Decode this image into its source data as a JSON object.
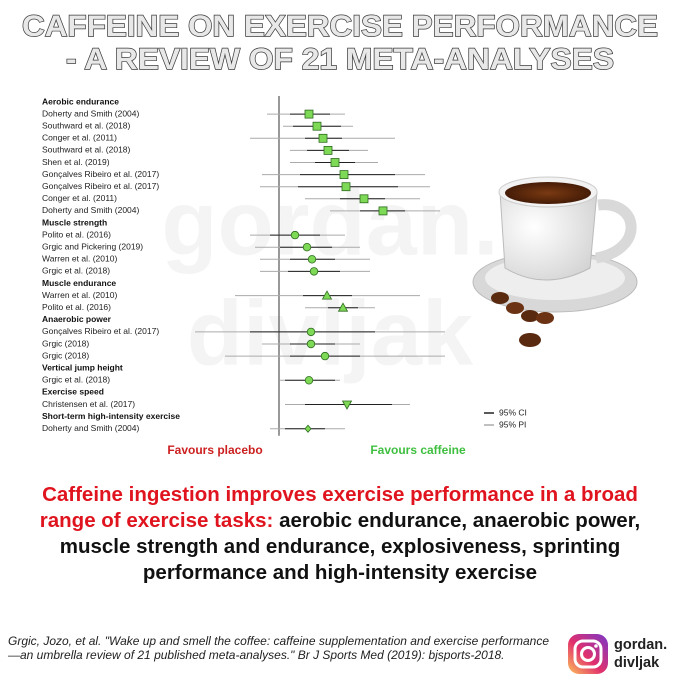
{
  "header": {
    "title_lines": [
      "CAFFEINE ON EXERCISE PERFORMANCE",
      "- A REVIEW OF 21 META-ANALYSES"
    ]
  },
  "watermark": [
    "gordan.",
    "divljak"
  ],
  "chart_data": {
    "type": "forest",
    "xlim": [
      -0.9,
      1.9
    ],
    "reference_line": 0,
    "marker_color": "#7ed957",
    "groups": [
      {
        "name": "Aerobic endurance",
        "marker": "square",
        "rows": [
          {
            "name": "Doherty and Smith (2004)",
            "estimate": 0.3,
            "ci": [
              0.11,
              0.51
            ],
            "pi": [
              -0.12,
              0.66
            ]
          },
          {
            "name": "Southward et al. (2018)",
            "estimate": 0.38,
            "ci": [
              0.14,
              0.62
            ],
            "pi": [
              0.04,
              0.74
            ]
          },
          {
            "name": "Conger et al. (2011)",
            "estimate": 0.44,
            "ci": [
              0.26,
              0.63
            ],
            "pi": [
              -0.29,
              1.16
            ]
          },
          {
            "name": "Southward et al. (2018)",
            "estimate": 0.49,
            "ci": [
              0.28,
              0.7
            ],
            "pi": [
              0.11,
              0.89
            ]
          },
          {
            "name": "Shen et al. (2019)",
            "estimate": 0.56,
            "ci": [
              0.36,
              0.76
            ],
            "pi": [
              0.11,
              0.99
            ]
          },
          {
            "name": "Gonçalves Ribeiro et al. (2017)",
            "estimate": 0.65,
            "ci": [
              0.21,
              1.16
            ],
            "pi": [
              -0.17,
              1.46
            ]
          },
          {
            "name": "Gonçalves Ribeiro et al. (2017)",
            "estimate": 0.67,
            "ci": [
              0.19,
              1.19
            ],
            "pi": [
              -0.19,
              1.51
            ]
          },
          {
            "name": "Conger et al. (2011)",
            "estimate": 0.85,
            "ci": [
              0.61,
              1.06
            ],
            "pi": [
              0.26,
              1.41
            ]
          },
          {
            "name": "Doherty and Smith (2004)",
            "estimate": 1.04,
            "ci": [
              0.81,
              1.26
            ],
            "pi": [
              0.51,
              1.61
            ]
          }
        ]
      },
      {
        "name": "Muscle strength",
        "marker": "circle",
        "rows": [
          {
            "name": "Polito et al. (2016)",
            "estimate": 0.16,
            "ci": [
              -0.09,
              0.41
            ],
            "pi": [
              -0.29,
              0.66
            ]
          },
          {
            "name": "Grgic and Pickering (2019)",
            "estimate": 0.28,
            "ci": [
              0.01,
              0.53
            ],
            "pi": [
              -0.24,
              0.81
            ]
          },
          {
            "name": "Warren et al. (2010)",
            "estimate": 0.33,
            "ci": [
              0.11,
              0.56
            ],
            "pi": [
              -0.19,
              0.91
            ]
          },
          {
            "name": "Grgic et al. (2018)",
            "estimate": 0.35,
            "ci": [
              0.09,
              0.61
            ],
            "pi": [
              -0.19,
              0.91
            ]
          }
        ]
      },
      {
        "name": "Muscle endurance",
        "marker": "triangle",
        "rows": [
          {
            "name": "Warren et al. (2010)",
            "estimate": 0.48,
            "ci": [
              0.24,
              0.73
            ],
            "pi": [
              -0.44,
              1.41
            ]
          },
          {
            "name": "Polito et al. (2016)",
            "estimate": 0.64,
            "ci": [
              0.49,
              0.79
            ],
            "pi": [
              0.26,
              0.96
            ]
          }
        ]
      },
      {
        "name": "Anaerobic power",
        "marker": "circle",
        "rows": [
          {
            "name": "Gonçalves Ribeiro et al. (2017)",
            "estimate": 0.32,
            "ci": [
              -0.29,
              0.96
            ],
            "pi": [
              -0.84,
              1.66
            ]
          },
          {
            "name": "Grgic (2018)",
            "estimate": 0.32,
            "ci": [
              0.11,
              0.56
            ],
            "pi": [
              -0.17,
              0.81
            ]
          },
          {
            "name": "Grgic (2018)",
            "estimate": 0.46,
            "ci": [
              0.11,
              0.81
            ],
            "pi": [
              -0.54,
              1.66
            ]
          }
        ]
      },
      {
        "name": "Vertical jump height",
        "marker": "circle",
        "rows": [
          {
            "name": "Grgic et al. (2018)",
            "estimate": 0.3,
            "ci": [
              0.06,
              0.56
            ],
            "pi": [
              0.01,
              0.61
            ]
          }
        ]
      },
      {
        "name": "Exercise speed",
        "marker": "triangle-down",
        "rows": [
          {
            "name": "Christensen et al. (2017)",
            "estimate": 0.68,
            "ci": [
              0.26,
              1.13
            ],
            "pi": [
              0.06,
              1.31
            ]
          }
        ]
      },
      {
        "name": "Short-term high-intensity exercise",
        "marker": "diamond",
        "rows": [
          {
            "name": "Doherty and Smith (2004)",
            "estimate": 0.29,
            "ci": [
              0.06,
              0.46
            ],
            "pi": [
              -0.09,
              0.66
            ]
          }
        ]
      }
    ],
    "legend": [
      {
        "name": "95% CI",
        "color": "#222222"
      },
      {
        "name": "95% PI",
        "color": "#aaaaaa"
      }
    ],
    "direction_labels": [
      {
        "text": "Favours placebo",
        "color": "#cc1f1f"
      },
      {
        "text": "Favours caffeine",
        "color": "#3fbf3f"
      }
    ]
  },
  "summary": {
    "highlight": "Caffeine ingestion improves exercise performance in a broad range of exercise tasks:",
    "text": "aerobic endurance, anaerobic power, muscle strength and endurance, explosiveness, sprinting performance and high-intensity exercise"
  },
  "citation": "Grgic, Jozo, et al. \"Wake up and smell the coffee: caffeine supplementation and exercise performance—an umbrella review of 21 published meta-analyses.\" Br J Sports Med (2019): bjsports-2018.",
  "handle": [
    "gordan.",
    "divljak"
  ]
}
